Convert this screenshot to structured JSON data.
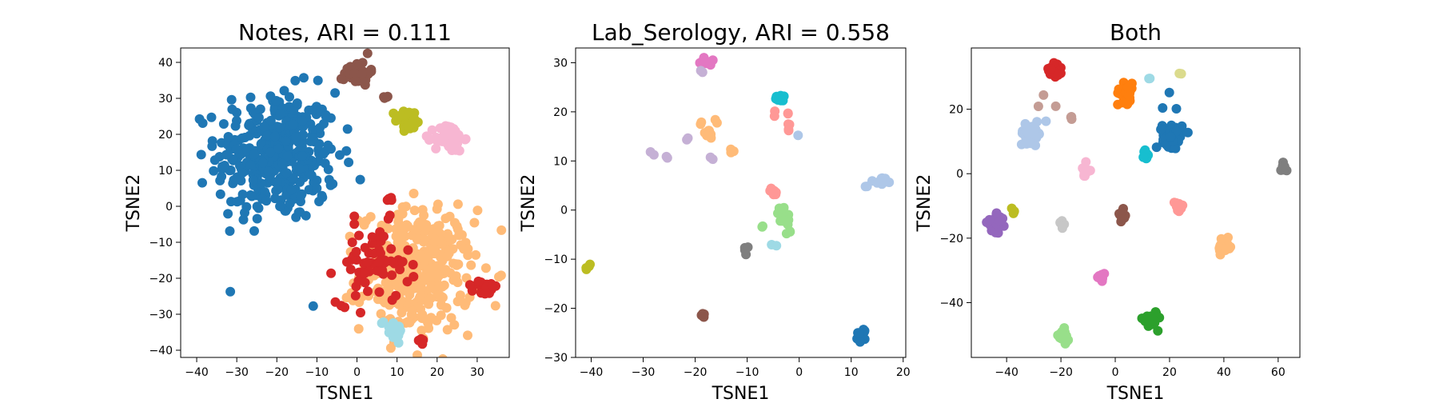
{
  "colors": {
    "blue": "#1f77b4",
    "orange": "#ff7f0e",
    "green": "#2ca02c",
    "red": "#d62728",
    "purple": "#9467bd",
    "brown": "#8c564b",
    "pink": "#e377c2",
    "gray": "#7f7f7f",
    "olive": "#bcbd22",
    "cyan": "#17becf",
    "lightblue": "#aec7e8",
    "lightorange": "#ffbb78",
    "lightgreen": "#98df8a",
    "lightred": "#ff9896",
    "lightpurple": "#c5b0d5",
    "lightbrown": "#c49c94",
    "lightpink": "#f7b6d2",
    "lightgray": "#c7c7c7",
    "lightolive": "#dbdb8d",
    "lightcyan": "#9edae5"
  },
  "chart_data": [
    {
      "type": "scatter",
      "title": "Notes, ARI = 0.111",
      "xlabel": "TSNE1",
      "ylabel": "TSNE2",
      "xlim": [
        -44,
        38
      ],
      "ylim": [
        -42,
        44
      ],
      "xticks": [
        -40,
        -30,
        -20,
        -10,
        0,
        10,
        20,
        30
      ],
      "yticks": [
        -40,
        -30,
        -20,
        -10,
        0,
        10,
        20,
        30,
        40
      ],
      "grid": false,
      "clusters": [
        {
          "color": "blue",
          "cx": -20,
          "cy": 14,
          "sx": 7.5,
          "sy": 9,
          "n": 380
        },
        {
          "color": "blue",
          "cx": -11,
          "cy": -28,
          "sx": 0.3,
          "sy": 0.3,
          "n": 1
        },
        {
          "color": "lightorange",
          "cx": 15,
          "cy": -18,
          "sx": 7,
          "sy": 8.5,
          "n": 360
        },
        {
          "color": "red",
          "cx": 4,
          "cy": -16,
          "sx": 4.5,
          "sy": 5.5,
          "n": 70
        },
        {
          "color": "red",
          "cx": 32,
          "cy": -23,
          "sx": 1.5,
          "sy": 1.2,
          "n": 18
        },
        {
          "color": "red",
          "cx": 8,
          "cy": 2,
          "sx": 0.6,
          "sy": 0.6,
          "n": 4
        },
        {
          "color": "red",
          "cx": 16,
          "cy": -37,
          "sx": 0.6,
          "sy": 0.7,
          "n": 4
        },
        {
          "color": "lightcyan",
          "cx": 9,
          "cy": -34,
          "sx": 1.5,
          "sy": 1.5,
          "n": 22
        },
        {
          "color": "brown",
          "cx": 0,
          "cy": 37,
          "sx": 1.6,
          "sy": 1.6,
          "n": 45
        },
        {
          "color": "brown",
          "cx": 7.5,
          "cy": 30.5,
          "sx": 0.5,
          "sy": 0.4,
          "n": 4
        },
        {
          "color": "olive",
          "cx": 13,
          "cy": 24,
          "sx": 1.7,
          "sy": 1.4,
          "n": 40
        },
        {
          "color": "lightpink",
          "cx": 23,
          "cy": 19,
          "sx": 1.8,
          "sy": 1.9,
          "n": 60
        }
      ]
    },
    {
      "type": "scatter",
      "title": "Lab_Serology, ARI = 0.558",
      "xlabel": "TSNE1",
      "ylabel": "TSNE2",
      "xlim": [
        -43,
        20.5
      ],
      "ylim": [
        -30,
        33
      ],
      "xticks": [
        -40,
        -30,
        -20,
        -10,
        0,
        10,
        20
      ],
      "yticks": [
        -30,
        -20,
        -10,
        0,
        10,
        20,
        30
      ],
      "grid": false,
      "clusters": [
        {
          "color": "pink",
          "cx": -17.5,
          "cy": 30.2,
          "sx": 0.7,
          "sy": 0.4,
          "n": 8
        },
        {
          "color": "lightpurple",
          "cx": -19,
          "cy": 28.3,
          "sx": 0.3,
          "sy": 0.3,
          "n": 2
        },
        {
          "color": "lightpurple",
          "cx": -28,
          "cy": 11.5,
          "sx": 0.3,
          "sy": 0.3,
          "n": 2
        },
        {
          "color": "lightpurple",
          "cx": -25.5,
          "cy": 10.8,
          "sx": 0.3,
          "sy": 0.3,
          "n": 2
        },
        {
          "color": "lightpurple",
          "cx": -17,
          "cy": 10.5,
          "sx": 0.3,
          "sy": 0.3,
          "n": 2
        },
        {
          "color": "lightpurple",
          "cx": -21.5,
          "cy": 14.5,
          "sx": 0.3,
          "sy": 0.3,
          "n": 2
        },
        {
          "color": "lightorange",
          "cx": -17.5,
          "cy": 15.5,
          "sx": 0.5,
          "sy": 0.5,
          "n": 12
        },
        {
          "color": "lightorange",
          "cx": -19,
          "cy": 17.5,
          "sx": 0.3,
          "sy": 0.3,
          "n": 2
        },
        {
          "color": "lightorange",
          "cx": -16,
          "cy": 17.8,
          "sx": 0.3,
          "sy": 0.3,
          "n": 2
        },
        {
          "color": "lightorange",
          "cx": -13,
          "cy": 12,
          "sx": 0.5,
          "sy": 0.3,
          "n": 4
        },
        {
          "color": "cyan",
          "cx": -3.5,
          "cy": 22.8,
          "sx": 0.6,
          "sy": 0.4,
          "n": 10
        },
        {
          "color": "lightred",
          "cx": -4.5,
          "cy": 19.5,
          "sx": 0.3,
          "sy": 0.3,
          "n": 2
        },
        {
          "color": "lightred",
          "cx": -2,
          "cy": 19.8,
          "sx": 0.3,
          "sy": 0.3,
          "n": 2
        },
        {
          "color": "lightred",
          "cx": -2,
          "cy": 17.8,
          "sx": 0.3,
          "sy": 0.3,
          "n": 2
        },
        {
          "color": "lightred",
          "cx": -2.2,
          "cy": 16,
          "sx": 0.3,
          "sy": 0.3,
          "n": 2
        },
        {
          "color": "lightred",
          "cx": -4.8,
          "cy": 3.8,
          "sx": 0.6,
          "sy": 0.4,
          "n": 8
        },
        {
          "color": "lightblue",
          "cx": 0,
          "cy": 15,
          "sx": 0.2,
          "sy": 0.2,
          "n": 1
        },
        {
          "color": "lightblue",
          "cx": 16,
          "cy": 6,
          "sx": 0.8,
          "sy": 0.4,
          "n": 10
        },
        {
          "color": "lightblue",
          "cx": 13,
          "cy": 5,
          "sx": 0.3,
          "sy": 0.3,
          "n": 2
        },
        {
          "color": "lightgreen",
          "cx": -3,
          "cy": -1.5,
          "sx": 0.7,
          "sy": 1.2,
          "n": 12
        },
        {
          "color": "lightgreen",
          "cx": -7,
          "cy": -3.5,
          "sx": 0.3,
          "sy": 0.3,
          "n": 2
        },
        {
          "color": "lightgreen",
          "cx": -1.8,
          "cy": -4.8,
          "sx": 0.4,
          "sy": 0.3,
          "n": 3
        },
        {
          "color": "lightcyan",
          "cx": -4.5,
          "cy": -7,
          "sx": 0.3,
          "sy": 0.3,
          "n": 2
        },
        {
          "color": "gray",
          "cx": -10,
          "cy": -8.2,
          "sx": 0.4,
          "sy": 0.4,
          "n": 4
        },
        {
          "color": "olive",
          "cx": -40.5,
          "cy": -11.5,
          "sx": 0.3,
          "sy": 0.4,
          "n": 5
        },
        {
          "color": "brown",
          "cx": -18.5,
          "cy": -21.5,
          "sx": 0.4,
          "sy": 0.3,
          "n": 5
        },
        {
          "color": "blue",
          "cx": 12,
          "cy": -25.5,
          "sx": 0.5,
          "sy": 0.7,
          "n": 12
        }
      ]
    },
    {
      "type": "scatter",
      "title": "Both",
      "xlabel": "TSNE1",
      "ylabel": "TSNE2",
      "xlim": [
        -53,
        68
      ],
      "ylim": [
        -57,
        39
      ],
      "xticks": [
        -40,
        -20,
        0,
        20,
        40,
        60
      ],
      "yticks": [
        -40,
        -20,
        0,
        20
      ],
      "grid": false,
      "clusters": [
        {
          "color": "red",
          "cx": -22,
          "cy": 32.5,
          "sx": 1.2,
          "sy": 1.2,
          "n": 40
        },
        {
          "color": "orange",
          "cx": 4,
          "cy": 25,
          "sx": 1.5,
          "sy": 1.5,
          "n": 40
        },
        {
          "color": "blue",
          "cx": 21,
          "cy": 12,
          "sx": 1.8,
          "sy": 1.8,
          "n": 60
        },
        {
          "color": "blue",
          "cx": 20,
          "cy": 24.5,
          "sx": 0.3,
          "sy": 0.3,
          "n": 1
        },
        {
          "color": "blue",
          "cx": 17.5,
          "cy": 20,
          "sx": 0.3,
          "sy": 0.3,
          "n": 1
        },
        {
          "color": "blue",
          "cx": 22,
          "cy": 20,
          "sx": 0.3,
          "sy": 0.3,
          "n": 1
        },
        {
          "color": "lightcyan",
          "cx": 13,
          "cy": 29.5,
          "sx": 0.3,
          "sy": 0.3,
          "n": 2
        },
        {
          "color": "lightolive",
          "cx": 24,
          "cy": 31,
          "sx": 0.3,
          "sy": 0.3,
          "n": 2
        },
        {
          "color": "lightblue",
          "cx": -31,
          "cy": 12.5,
          "sx": 2.0,
          "sy": 1.4,
          "n": 40
        },
        {
          "color": "lightbrown",
          "cx": -26,
          "cy": 24,
          "sx": 0.3,
          "sy": 0.3,
          "n": 1
        },
        {
          "color": "lightbrown",
          "cx": -28.5,
          "cy": 20.5,
          "sx": 0.3,
          "sy": 0.3,
          "n": 1
        },
        {
          "color": "lightbrown",
          "cx": -22.5,
          "cy": 20.5,
          "sx": 0.3,
          "sy": 0.3,
          "n": 1
        },
        {
          "color": "lightbrown",
          "cx": -16,
          "cy": 17.5,
          "sx": 0.4,
          "sy": 0.4,
          "n": 3
        },
        {
          "color": "lightblue",
          "cx": -25.5,
          "cy": 16.5,
          "sx": 0.3,
          "sy": 0.3,
          "n": 1
        },
        {
          "color": "cyan",
          "cx": 11,
          "cy": 5.5,
          "sx": 0.6,
          "sy": 1.0,
          "n": 10
        },
        {
          "color": "lightpink",
          "cx": -11,
          "cy": 1,
          "sx": 0.8,
          "sy": 1.1,
          "n": 14
        },
        {
          "color": "gray",
          "cx": 62,
          "cy": 2,
          "sx": 0.5,
          "sy": 0.8,
          "n": 10
        },
        {
          "color": "purple",
          "cx": -44,
          "cy": -16,
          "sx": 1.5,
          "sy": 1.5,
          "n": 25
        },
        {
          "color": "olive",
          "cx": -37.5,
          "cy": -11.5,
          "sx": 0.5,
          "sy": 0.4,
          "n": 5
        },
        {
          "color": "lightgray",
          "cx": -19.5,
          "cy": -15.5,
          "sx": 0.6,
          "sy": 0.7,
          "n": 8
        },
        {
          "color": "brown",
          "cx": 2.5,
          "cy": -12.5,
          "sx": 0.8,
          "sy": 1.0,
          "n": 12
        },
        {
          "color": "lightred",
          "cx": 23,
          "cy": -10.5,
          "sx": 1.0,
          "sy": 1.0,
          "n": 16
        },
        {
          "color": "lightorange",
          "cx": 40.5,
          "cy": -22.5,
          "sx": 1.3,
          "sy": 1.5,
          "n": 18
        },
        {
          "color": "pink",
          "cx": -5,
          "cy": -32,
          "sx": 0.7,
          "sy": 0.9,
          "n": 10
        },
        {
          "color": "green",
          "cx": 13,
          "cy": -45,
          "sx": 1.3,
          "sy": 1.3,
          "n": 25
        },
        {
          "color": "lightgreen",
          "cx": -19.5,
          "cy": -50.5,
          "sx": 1.2,
          "sy": 1.0,
          "n": 20
        }
      ]
    }
  ]
}
